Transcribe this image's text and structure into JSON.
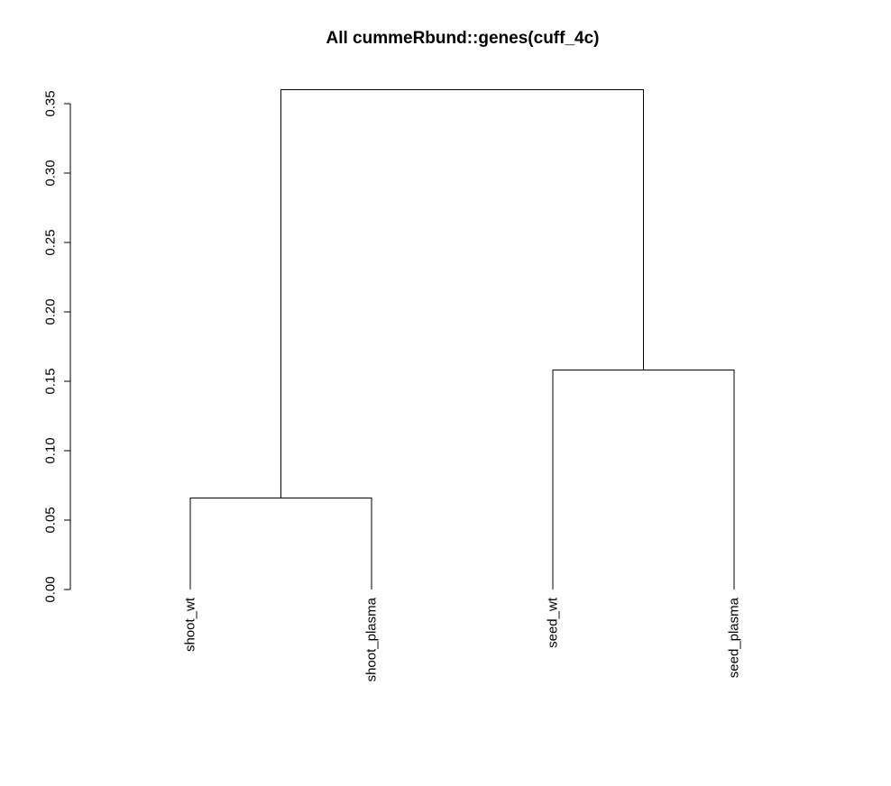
{
  "chart_data": {
    "type": "dendrogram",
    "title": "All cummeRbund::genes(cuff_4c)",
    "xlabel": "",
    "ylabel": "",
    "ylim": [
      0,
      0.35
    ],
    "yticks": [
      0.0,
      0.05,
      0.1,
      0.15,
      0.2,
      0.25,
      0.3,
      0.35
    ],
    "ytick_labels": [
      "0.00",
      "0.05",
      "0.10",
      "0.15",
      "0.20",
      "0.25",
      "0.30",
      "0.35"
    ],
    "leaves": [
      "shoot_wt",
      "shoot_plasma",
      "seed_wt",
      "seed_plasma"
    ],
    "merges": [
      {
        "left": "shoot_wt",
        "right": "shoot_plasma",
        "height": 0.066
      },
      {
        "left": "seed_wt",
        "right": "seed_plasma",
        "height": 0.158
      },
      {
        "left": 0,
        "right": 1,
        "height": 0.36
      }
    ],
    "grid": false,
    "legend": "none"
  }
}
